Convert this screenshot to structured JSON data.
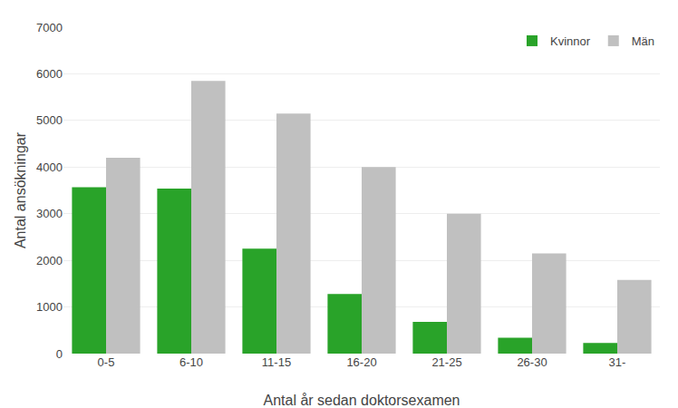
{
  "chart_data": {
    "type": "bar",
    "xlabel": "Antal år sedan doktorsexamen",
    "ylabel": "Antal ansökningar",
    "categories": [
      "0-5",
      "6-10",
      "11-15",
      "16-20",
      "21-25",
      "26-30",
      "31-"
    ],
    "series": [
      {
        "name": "Kvinnor",
        "color": "#29a329",
        "values": [
          3570,
          3540,
          2250,
          1280,
          680,
          340,
          230
        ]
      },
      {
        "name": "Män",
        "color": "#c0c0c0",
        "values": [
          4200,
          5850,
          5150,
          4000,
          3000,
          2150,
          1580
        ]
      }
    ],
    "ylim": [
      0,
      7000
    ],
    "yticks": [
      0,
      1000,
      2000,
      3000,
      4000,
      5000,
      6000,
      7000
    ],
    "grid": true,
    "legend": "upper right"
  }
}
